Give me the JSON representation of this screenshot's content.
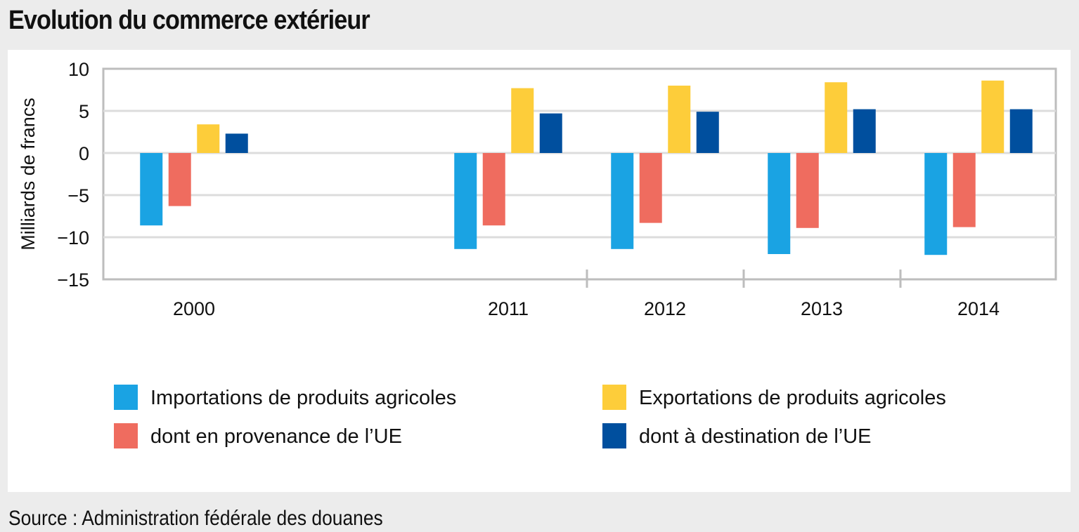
{
  "title": "Evolution du commerce extérieur",
  "source": "Source : Administration fédérale des douanes",
  "colors": {
    "imports": "#1aa3e3",
    "imports_eu": "#ef6c5f",
    "exports": "#fdcd3a",
    "exports_eu": "#004f9e",
    "grid": "#dcdcdc",
    "axis": "#bdbdbd"
  },
  "chart_data": {
    "type": "bar",
    "ylabel": "Milliards de francs",
    "xlabel": "",
    "ylim": [
      -15,
      10
    ],
    "yticks": [
      10,
      5,
      0,
      -5,
      -10,
      -15
    ],
    "ytick_labels": [
      "10",
      "5",
      "0",
      "−5",
      "−10",
      "−15"
    ],
    "categories": [
      "2000",
      "2011",
      "2012",
      "2013",
      "2014"
    ],
    "series": [
      {
        "name": "Importations de produits agricoles",
        "color": "#1aa3e3",
        "values": [
          -8.6,
          -11.4,
          -11.4,
          -12.0,
          -12.1
        ]
      },
      {
        "name": "dont en provenance de l’UE",
        "color": "#ef6c5f",
        "values": [
          -6.3,
          -8.6,
          -8.3,
          -8.9,
          -8.8
        ]
      },
      {
        "name": "Exportations de produits agricoles",
        "color": "#fdcd3a",
        "values": [
          3.4,
          7.7,
          8.0,
          8.4,
          8.6
        ]
      },
      {
        "name": "dont à destination de l’UE",
        "color": "#004f9e",
        "values": [
          2.3,
          4.7,
          4.9,
          5.2,
          5.2
        ]
      }
    ],
    "legend_order": [
      0,
      2,
      1,
      3
    ],
    "legend_position": "bottom",
    "grid": true
  }
}
